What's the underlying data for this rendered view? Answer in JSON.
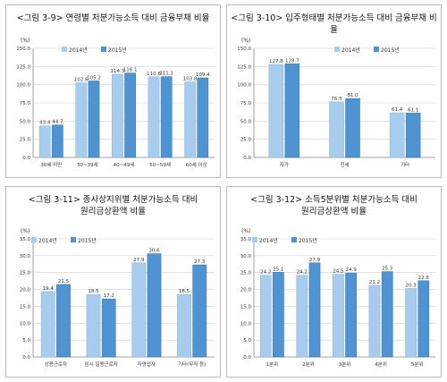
{
  "colors": {
    "s2014": "#a8ccee",
    "s2014_edge": "#7fb0df",
    "s2015": "#4f93d2",
    "s2015_edge": "#2e72b6",
    "grid": "#d0d0d0",
    "axis": "#8a8a8a",
    "label": "#333333"
  },
  "chart_data": [
    {
      "type": "bar",
      "title": "<그림 3-9> 연령별 처분가능소득 대비 금융부채 비율",
      "unit": "(%)",
      "categories": [
        "30세 미만",
        "30~39세",
        "40~49세",
        "50~59세",
        "60세 이상"
      ],
      "series": [
        {
          "name": "2014년",
          "values": [
            43.4,
            102.6,
            114.3,
            110.8,
            103.8
          ]
        },
        {
          "name": "2015년",
          "values": [
            44.7,
            105.2,
            116.1,
            111.1,
            109.4
          ]
        }
      ],
      "value_labels": [
        [
          "43.4",
          "102.6",
          "114.3",
          "110.8",
          "103.8"
        ],
        [
          "44.7",
          "105.2",
          "116.1",
          "111.1",
          "109.4"
        ]
      ],
      "ylim": [
        0,
        150
      ],
      "yticks": [
        "0.0",
        "25.0",
        "50.0",
        "75.0",
        "100.0",
        "125.0",
        "150.0"
      ],
      "legend": "top-center",
      "grid": true
    },
    {
      "type": "bar",
      "title": "<그림 3-10> 입주형태별 처분가능소득 대비 금융부채 비율",
      "unit": "(%)",
      "categories": [
        "자가",
        "전세",
        "기타"
      ],
      "series": [
        {
          "name": "2014년",
          "values": [
            127.8,
            76.5,
            61.4
          ]
        },
        {
          "name": "2015년",
          "values": [
            128.7,
            81.0,
            61.1
          ]
        }
      ],
      "value_labels": [
        [
          "127.8",
          "76.5",
          "61.4"
        ],
        [
          "128.7",
          "81.0",
          "61.1"
        ]
      ],
      "ylim": [
        0,
        150
      ],
      "yticks": [
        "0.0",
        "25.0",
        "50.0",
        "75.0",
        "100.0",
        "125.0",
        "150.0"
      ],
      "legend": "top-right",
      "grid": true
    },
    {
      "type": "bar",
      "title": "<그림 3-11> 종사상지위별 처분가능소득 대비\n원리금상환액 비율",
      "unit": "(%)",
      "categories": [
        "상용근로자",
        "임시·일용근로자",
        "자영업자",
        "기타(무직 등)"
      ],
      "series": [
        {
          "name": "2014년",
          "values": [
            19.4,
            18.5,
            27.9,
            18.5
          ]
        },
        {
          "name": "2015년",
          "values": [
            21.5,
            17.2,
            30.6,
            27.3
          ]
        }
      ],
      "value_labels": [
        [
          "19.4",
          "18.5",
          "27.9",
          "18.5"
        ],
        [
          "21.5",
          "17.2",
          "30.6",
          "27.3"
        ]
      ],
      "ylim": [
        0,
        35
      ],
      "yticks": [
        "0.0",
        "5.0",
        "10.0",
        "15.0",
        "20.0",
        "25.0",
        "30.0",
        "35.0"
      ],
      "legend": "top-left",
      "grid": true
    },
    {
      "type": "bar",
      "title": "<그림 3-12> 소득5분위별 처분가능소득 대비\n원리금상환액 비율",
      "unit": "(%)",
      "categories": [
        "1분위",
        "2분위",
        "3분위",
        "4분위",
        "5분위"
      ],
      "series": [
        {
          "name": "2014년",
          "values": [
            24.2,
            24.2,
            24.5,
            21.2,
            20.3
          ]
        },
        {
          "name": "2015년",
          "values": [
            25.1,
            27.9,
            24.9,
            25.3,
            22.6
          ]
        }
      ],
      "value_labels": [
        [
          "24.2",
          "24.2",
          "24.5",
          "21.2",
          "20.3"
        ],
        [
          "25.1",
          "27.9",
          "24.9",
          "25.3",
          "22.6"
        ]
      ],
      "ylim": [
        0,
        35
      ],
      "yticks": [
        "0.0",
        "5.0",
        "10.0",
        "15.0",
        "20.0",
        "25.0",
        "30.0",
        "35.0"
      ],
      "legend": "top-left",
      "grid": true
    }
  ]
}
